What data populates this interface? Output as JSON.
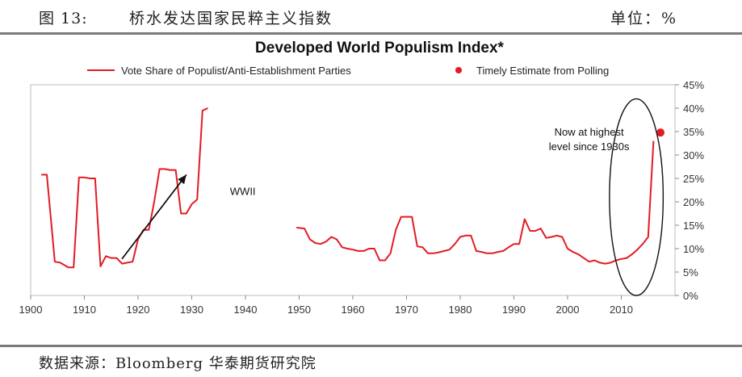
{
  "header": {
    "figure_number": "图 13:",
    "figure_title": "桥水发达国家民粹主义指数",
    "unit": "单位：%"
  },
  "footer": {
    "source": "数据来源：Bloomberg 华泰期货研究院"
  },
  "chart_data": {
    "type": "line",
    "title": "Developed World Populism Index*",
    "xlabel": "",
    "ylabel": "",
    "xlim": [
      1900,
      2020
    ],
    "ylim": [
      0,
      45
    ],
    "x_ticks": [
      1900,
      1910,
      1920,
      1930,
      1940,
      1950,
      1960,
      1970,
      1980,
      1990,
      2000,
      2010
    ],
    "x_tick_labels": [
      "1900",
      "1910",
      "1920",
      "1930",
      "1940",
      "1950",
      "1960",
      "1970",
      "1980",
      "1990",
      "2000",
      "2010"
    ],
    "y_ticks": [
      0,
      5,
      10,
      15,
      20,
      25,
      30,
      35,
      40,
      45
    ],
    "y_tick_labels": [
      "0%",
      "5%",
      "10%",
      "15%",
      "20%",
      "25%",
      "30%",
      "35%",
      "40%",
      "45%"
    ],
    "y_axis_side": "right",
    "legend_position": "top",
    "legend": [
      {
        "label": "Vote Share of Populist/Anti-Establishment Parties",
        "kind": "line",
        "color": "#e31b23"
      },
      {
        "label": "Timely Estimate from Polling",
        "kind": "dot",
        "color": "#e31b23"
      }
    ],
    "series": [
      {
        "name": "Vote Share of Populist/Anti-Establishment Parties",
        "color": "#e31b23",
        "segments": [
          [
            [
              1902,
              25.8
            ],
            [
              1903,
              25.8
            ],
            [
              1904.5,
              7.2
            ],
            [
              1905.5,
              7.0
            ],
            [
              1907,
              6.0
            ],
            [
              1908,
              6.0
            ],
            [
              1909,
              25.2
            ],
            [
              1910,
              25.2
            ],
            [
              1911,
              25.0
            ],
            [
              1912,
              25.0
            ],
            [
              1913,
              6.2
            ],
            [
              1914,
              8.4
            ],
            [
              1915,
              8.0
            ],
            [
              1916,
              8.0
            ],
            [
              1917,
              6.8
            ],
            [
              1918,
              7.0
            ],
            [
              1919,
              7.2
            ],
            [
              1920,
              12.0
            ],
            [
              1921,
              14.0
            ],
            [
              1922,
              14.0
            ],
            [
              1923,
              20.0
            ],
            [
              1924,
              27.0
            ],
            [
              1925,
              27.0
            ],
            [
              1926,
              26.8
            ],
            [
              1927,
              26.8
            ],
            [
              1928,
              17.5
            ],
            [
              1929,
              17.5
            ],
            [
              1930,
              19.5
            ],
            [
              1931,
              20.5
            ],
            [
              1932,
              39.5
            ],
            [
              1933,
              40.0
            ]
          ],
          [
            [
              1949.5,
              14.5
            ],
            [
              1951,
              14.3
            ],
            [
              1952,
              12.0
            ],
            [
              1953,
              11.2
            ],
            [
              1954,
              11.0
            ],
            [
              1955,
              11.5
            ],
            [
              1956,
              12.5
            ],
            [
              1957,
              12.0
            ],
            [
              1958,
              10.3
            ],
            [
              1959,
              10.0
            ],
            [
              1960,
              9.8
            ],
            [
              1961,
              9.5
            ],
            [
              1962,
              9.5
            ],
            [
              1963,
              10.0
            ],
            [
              1964,
              10.0
            ],
            [
              1965,
              7.5
            ],
            [
              1966,
              7.5
            ],
            [
              1967,
              9.0
            ],
            [
              1968,
              14.0
            ],
            [
              1969,
              16.8
            ],
            [
              1970,
              16.8
            ],
            [
              1971,
              16.8
            ],
            [
              1972,
              10.5
            ],
            [
              1973,
              10.3
            ],
            [
              1974,
              9.0
            ],
            [
              1975,
              9.0
            ],
            [
              1976,
              9.2
            ],
            [
              1977,
              9.5
            ],
            [
              1978,
              9.8
            ],
            [
              1979,
              11.0
            ],
            [
              1980,
              12.5
            ],
            [
              1981,
              12.8
            ],
            [
              1982,
              12.8
            ],
            [
              1983,
              9.5
            ],
            [
              1984,
              9.3
            ],
            [
              1985,
              9.0
            ],
            [
              1986,
              9.0
            ],
            [
              1987,
              9.3
            ],
            [
              1988,
              9.5
            ],
            [
              1989,
              10.3
            ],
            [
              1990,
              11.0
            ],
            [
              1991,
              11.0
            ],
            [
              1992,
              16.3
            ],
            [
              1993,
              13.8
            ],
            [
              1994,
              13.8
            ],
            [
              1995,
              14.3
            ],
            [
              1996,
              12.3
            ],
            [
              1997,
              12.5
            ],
            [
              1998,
              12.8
            ],
            [
              1999,
              12.5
            ],
            [
              2000,
              10.0
            ],
            [
              2001,
              9.3
            ],
            [
              2002,
              8.8
            ],
            [
              2003,
              8.0
            ],
            [
              2004,
              7.2
            ],
            [
              2005,
              7.5
            ],
            [
              2006,
              7.0
            ],
            [
              2007,
              6.8
            ],
            [
              2008,
              7.0
            ],
            [
              2009,
              7.5
            ],
            [
              2010,
              7.8
            ],
            [
              2011,
              8.0
            ],
            [
              2012,
              8.8
            ],
            [
              2013,
              9.8
            ],
            [
              2014,
              11.0
            ],
            [
              2015,
              12.5
            ],
            [
              2016,
              33.0
            ]
          ]
        ]
      },
      {
        "name": "Timely Estimate from Polling",
        "color": "#e31b23",
        "points": [
          [
            2017.3,
            34.8
          ]
        ]
      }
    ],
    "annotations": [
      {
        "text": "WWII",
        "x": 1939.5,
        "y": 21.5
      },
      {
        "lines": [
          "Now at highest",
          "level since 1930s"
        ],
        "x": 2004,
        "y": 34.5
      },
      {
        "type": "arrow",
        "from": [
          1917,
          7.8
        ],
        "to": [
          1929,
          25.8
        ]
      },
      {
        "type": "ellipse",
        "cx": 2012.8,
        "cy": 21.0,
        "rx": 5.0,
        "ry": 21.0
      }
    ]
  }
}
